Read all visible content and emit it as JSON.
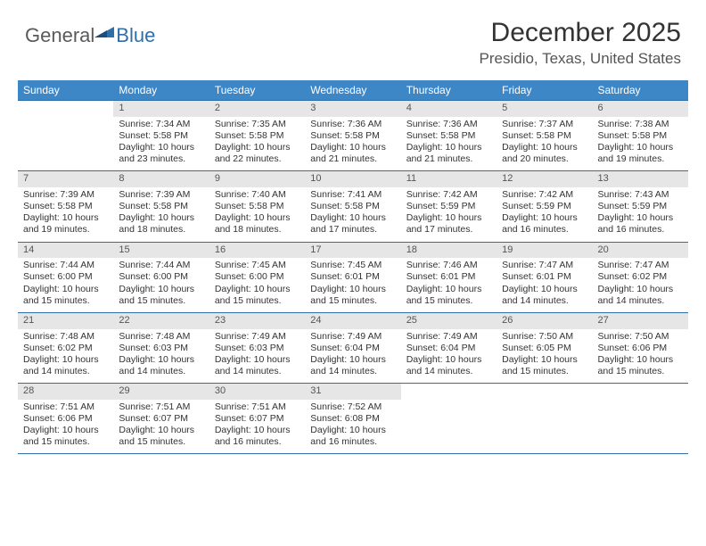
{
  "logo": {
    "general": "General",
    "blue": "Blue",
    "mark_color": "#2f6fa8"
  },
  "title": "December 2025",
  "location": "Presidio, Texas, United States",
  "header_bg": "#3d87c7",
  "header_fg": "#ffffff",
  "daynum_bg": "#e6e6e6",
  "rule_color": "#2f6fa8",
  "weekdays": [
    "Sunday",
    "Monday",
    "Tuesday",
    "Wednesday",
    "Thursday",
    "Friday",
    "Saturday"
  ],
  "weeks": [
    [
      {
        "n": "",
        "sr": "",
        "ss": "",
        "dl": ""
      },
      {
        "n": "1",
        "sr": "Sunrise: 7:34 AM",
        "ss": "Sunset: 5:58 PM",
        "dl": "Daylight: 10 hours and 23 minutes."
      },
      {
        "n": "2",
        "sr": "Sunrise: 7:35 AM",
        "ss": "Sunset: 5:58 PM",
        "dl": "Daylight: 10 hours and 22 minutes."
      },
      {
        "n": "3",
        "sr": "Sunrise: 7:36 AM",
        "ss": "Sunset: 5:58 PM",
        "dl": "Daylight: 10 hours and 21 minutes."
      },
      {
        "n": "4",
        "sr": "Sunrise: 7:36 AM",
        "ss": "Sunset: 5:58 PM",
        "dl": "Daylight: 10 hours and 21 minutes."
      },
      {
        "n": "5",
        "sr": "Sunrise: 7:37 AM",
        "ss": "Sunset: 5:58 PM",
        "dl": "Daylight: 10 hours and 20 minutes."
      },
      {
        "n": "6",
        "sr": "Sunrise: 7:38 AM",
        "ss": "Sunset: 5:58 PM",
        "dl": "Daylight: 10 hours and 19 minutes."
      }
    ],
    [
      {
        "n": "7",
        "sr": "Sunrise: 7:39 AM",
        "ss": "Sunset: 5:58 PM",
        "dl": "Daylight: 10 hours and 19 minutes."
      },
      {
        "n": "8",
        "sr": "Sunrise: 7:39 AM",
        "ss": "Sunset: 5:58 PM",
        "dl": "Daylight: 10 hours and 18 minutes."
      },
      {
        "n": "9",
        "sr": "Sunrise: 7:40 AM",
        "ss": "Sunset: 5:58 PM",
        "dl": "Daylight: 10 hours and 18 minutes."
      },
      {
        "n": "10",
        "sr": "Sunrise: 7:41 AM",
        "ss": "Sunset: 5:58 PM",
        "dl": "Daylight: 10 hours and 17 minutes."
      },
      {
        "n": "11",
        "sr": "Sunrise: 7:42 AM",
        "ss": "Sunset: 5:59 PM",
        "dl": "Daylight: 10 hours and 17 minutes."
      },
      {
        "n": "12",
        "sr": "Sunrise: 7:42 AM",
        "ss": "Sunset: 5:59 PM",
        "dl": "Daylight: 10 hours and 16 minutes."
      },
      {
        "n": "13",
        "sr": "Sunrise: 7:43 AM",
        "ss": "Sunset: 5:59 PM",
        "dl": "Daylight: 10 hours and 16 minutes."
      }
    ],
    [
      {
        "n": "14",
        "sr": "Sunrise: 7:44 AM",
        "ss": "Sunset: 6:00 PM",
        "dl": "Daylight: 10 hours and 15 minutes."
      },
      {
        "n": "15",
        "sr": "Sunrise: 7:44 AM",
        "ss": "Sunset: 6:00 PM",
        "dl": "Daylight: 10 hours and 15 minutes."
      },
      {
        "n": "16",
        "sr": "Sunrise: 7:45 AM",
        "ss": "Sunset: 6:00 PM",
        "dl": "Daylight: 10 hours and 15 minutes."
      },
      {
        "n": "17",
        "sr": "Sunrise: 7:45 AM",
        "ss": "Sunset: 6:01 PM",
        "dl": "Daylight: 10 hours and 15 minutes."
      },
      {
        "n": "18",
        "sr": "Sunrise: 7:46 AM",
        "ss": "Sunset: 6:01 PM",
        "dl": "Daylight: 10 hours and 15 minutes."
      },
      {
        "n": "19",
        "sr": "Sunrise: 7:47 AM",
        "ss": "Sunset: 6:01 PM",
        "dl": "Daylight: 10 hours and 14 minutes."
      },
      {
        "n": "20",
        "sr": "Sunrise: 7:47 AM",
        "ss": "Sunset: 6:02 PM",
        "dl": "Daylight: 10 hours and 14 minutes."
      }
    ],
    [
      {
        "n": "21",
        "sr": "Sunrise: 7:48 AM",
        "ss": "Sunset: 6:02 PM",
        "dl": "Daylight: 10 hours and 14 minutes."
      },
      {
        "n": "22",
        "sr": "Sunrise: 7:48 AM",
        "ss": "Sunset: 6:03 PM",
        "dl": "Daylight: 10 hours and 14 minutes."
      },
      {
        "n": "23",
        "sr": "Sunrise: 7:49 AM",
        "ss": "Sunset: 6:03 PM",
        "dl": "Daylight: 10 hours and 14 minutes."
      },
      {
        "n": "24",
        "sr": "Sunrise: 7:49 AM",
        "ss": "Sunset: 6:04 PM",
        "dl": "Daylight: 10 hours and 14 minutes."
      },
      {
        "n": "25",
        "sr": "Sunrise: 7:49 AM",
        "ss": "Sunset: 6:04 PM",
        "dl": "Daylight: 10 hours and 14 minutes."
      },
      {
        "n": "26",
        "sr": "Sunrise: 7:50 AM",
        "ss": "Sunset: 6:05 PM",
        "dl": "Daylight: 10 hours and 15 minutes."
      },
      {
        "n": "27",
        "sr": "Sunrise: 7:50 AM",
        "ss": "Sunset: 6:06 PM",
        "dl": "Daylight: 10 hours and 15 minutes."
      }
    ],
    [
      {
        "n": "28",
        "sr": "Sunrise: 7:51 AM",
        "ss": "Sunset: 6:06 PM",
        "dl": "Daylight: 10 hours and 15 minutes."
      },
      {
        "n": "29",
        "sr": "Sunrise: 7:51 AM",
        "ss": "Sunset: 6:07 PM",
        "dl": "Daylight: 10 hours and 15 minutes."
      },
      {
        "n": "30",
        "sr": "Sunrise: 7:51 AM",
        "ss": "Sunset: 6:07 PM",
        "dl": "Daylight: 10 hours and 16 minutes."
      },
      {
        "n": "31",
        "sr": "Sunrise: 7:52 AM",
        "ss": "Sunset: 6:08 PM",
        "dl": "Daylight: 10 hours and 16 minutes."
      },
      {
        "n": "",
        "sr": "",
        "ss": "",
        "dl": ""
      },
      {
        "n": "",
        "sr": "",
        "ss": "",
        "dl": ""
      },
      {
        "n": "",
        "sr": "",
        "ss": "",
        "dl": ""
      }
    ]
  ]
}
